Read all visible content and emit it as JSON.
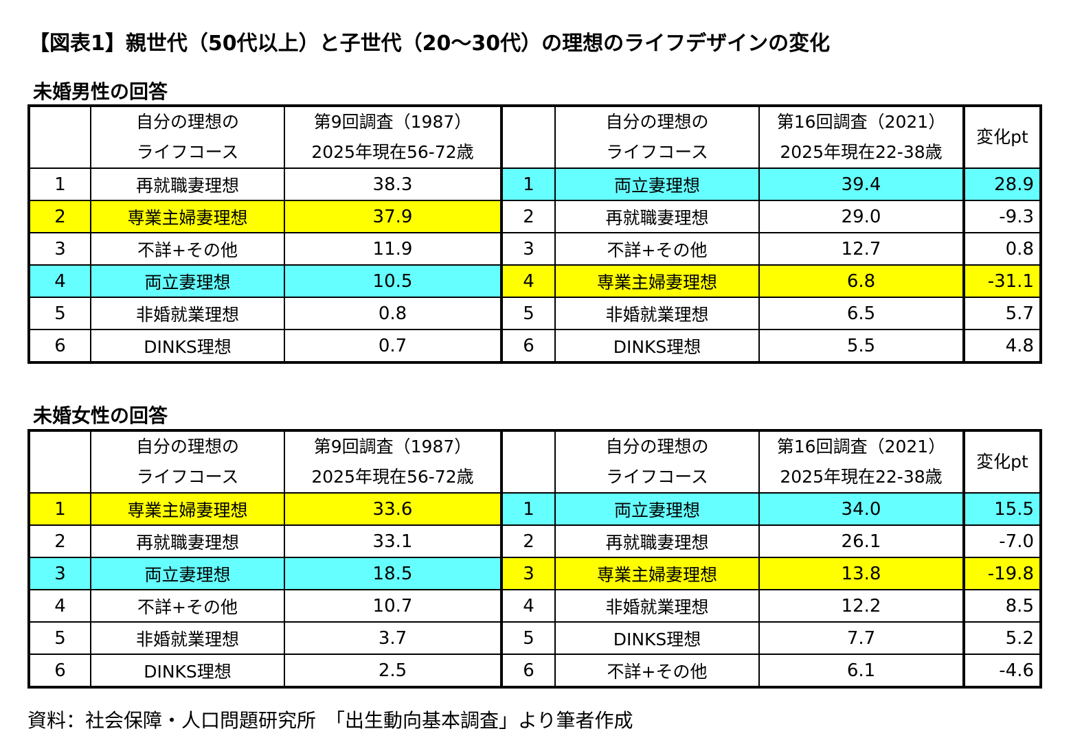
{
  "title": "【図表1】親世代（50代以上）と子世代（20～30代）の理想のライフデザインの変化",
  "header": {
    "course_line1": "自分の理想の",
    "course_line2": "ライフコース",
    "survey1_line1": "第9回調査（1987）",
    "survey1_line2": "2025年現在56-72歳",
    "survey2_line1": "第16回調査（2021）",
    "survey2_line2": "2025年現在22-38歳",
    "change": "変化pt"
  },
  "male": {
    "label": "未婚男性の回答",
    "rows": [
      {
        "rank1": "1",
        "course1": "再就職妻理想",
        "value1": "38.3",
        "rank2": "1",
        "course2": "両立妻理想",
        "value2": "39.4",
        "change": "28.9"
      },
      {
        "rank1": "2",
        "course1": "専業主婦妻理想",
        "value1": "37.9",
        "rank2": "2",
        "course2": "再就職妻理想",
        "value2": "29.0",
        "change": "-9.3"
      },
      {
        "rank1": "3",
        "course1": "不詳+その他",
        "value1": "11.9",
        "rank2": "3",
        "course2": "不詳+その他",
        "value2": "12.7",
        "change": "0.8"
      },
      {
        "rank1": "4",
        "course1": "両立妻理想",
        "value1": "10.5",
        "rank2": "4",
        "course2": "専業主婦妻理想",
        "value2": "6.8",
        "change": "-31.1"
      },
      {
        "rank1": "5",
        "course1": "非婚就業理想",
        "value1": "0.8",
        "rank2": "5",
        "course2": "非婚就業理想",
        "value2": "6.5",
        "change": "5.7"
      },
      {
        "rank1": "6",
        "course1": "DINKS理想",
        "value1": "0.7",
        "rank2": "6",
        "course2": "DINKS理想",
        "value2": "5.5",
        "change": "4.8"
      }
    ]
  },
  "female": {
    "label": "未婚女性の回答",
    "rows": [
      {
        "rank1": "1",
        "course1": "専業主婦妻理想",
        "value1": "33.6",
        "rank2": "1",
        "course2": "両立妻理想",
        "value2": "34.0",
        "change": "15.5"
      },
      {
        "rank1": "2",
        "course1": "再就職妻理想",
        "value1": "33.1",
        "rank2": "2",
        "course2": "再就職妻理想",
        "value2": "26.1",
        "change": "-7.0"
      },
      {
        "rank1": "3",
        "course1": "両立妻理想",
        "value1": "18.5",
        "rank2": "3",
        "course2": "専業主婦妻理想",
        "value2": "13.8",
        "change": "-19.8"
      },
      {
        "rank1": "4",
        "course1": "不詳+その他",
        "value1": "10.7",
        "rank2": "4",
        "course2": "非婚就業理想",
        "value2": "12.2",
        "change": "8.5"
      },
      {
        "rank1": "5",
        "course1": "非婚就業理想",
        "value1": "3.7",
        "rank2": "5",
        "course2": "DINKS理想",
        "value2": "7.7",
        "change": "5.2"
      },
      {
        "rank1": "6",
        "course1": "DINKS理想",
        "value1": "2.5",
        "rank2": "6",
        "course2": "不詳+その他",
        "value2": "6.1",
        "change": "-4.6"
      }
    ]
  },
  "highlight_colors": {
    "yellow": "#ffff00",
    "cyan": "#66ffff"
  },
  "source": "資料：社会保障・人口問題研究所　「出生動向基本調査」より筆者作成"
}
